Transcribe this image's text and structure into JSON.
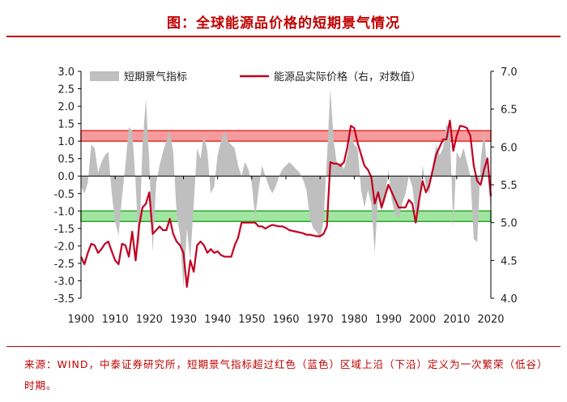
{
  "header": {
    "title": "图：全球能源品价格的短期景气情况"
  },
  "footer": {
    "source": "来源：WIND，中泰证券研究所，短期景气指标超过红色（蓝色）区域上沿（下沿）定义为一次繁荣（低谷）时期。"
  },
  "chart_data": {
    "type": "area+line",
    "title": "图：全球能源品价格的短期景气情况",
    "xlabel": "",
    "ylabel": "",
    "y2label": "",
    "xlim": [
      1900,
      2020
    ],
    "ylim": [
      -3.5,
      3.0
    ],
    "y2lim": [
      4.0,
      7.0
    ],
    "x_ticks": [
      1900,
      1910,
      1920,
      1930,
      1940,
      1950,
      1960,
      1970,
      1980,
      1990,
      2000,
      2010,
      2020
    ],
    "y_ticks": [
      3.0,
      2.5,
      2.0,
      1.5,
      1.0,
      0.5,
      0.0,
      -0.5,
      -1.0,
      -1.5,
      -2.0,
      -2.5,
      -3.0,
      -3.5
    ],
    "y2_ticks": [
      7.0,
      6.5,
      6.0,
      5.5,
      5.0,
      4.5,
      4.0
    ],
    "y_tick_labels": [
      "3.0",
      "2.5",
      "2.0",
      "1.5",
      "1.0",
      "0.5",
      "0.0",
      "-0.5",
      "-1.0",
      "-1.5",
      "-2.0",
      "-2.5",
      "-3.0",
      "-3.5"
    ],
    "y2_tick_labels": [
      "7.0",
      "6.5",
      "6.0",
      "5.5",
      "5.0",
      "4.5",
      "4.0"
    ],
    "legend_position": "top",
    "bands": [
      {
        "name": "boom",
        "y_range": [
          1.0,
          1.3
        ],
        "fill": "#f48a8a",
        "stroke": "#e03030"
      },
      {
        "name": "trough",
        "y_range": [
          -1.3,
          -1.0
        ],
        "fill": "#8fe08f",
        "stroke": "#2ea52e"
      }
    ],
    "series": [
      {
        "name": "短期景气指标",
        "type": "area",
        "axis": "left",
        "color": "#bfbfbf",
        "x": [
          1900,
          1901,
          1902,
          1903,
          1904,
          1905,
          1906,
          1907,
          1908,
          1909,
          1910,
          1911,
          1912,
          1913,
          1914,
          1915,
          1916,
          1917,
          1918,
          1919,
          1920,
          1921,
          1922,
          1923,
          1924,
          1925,
          1926,
          1927,
          1928,
          1929,
          1930,
          1931,
          1932,
          1933,
          1934,
          1935,
          1936,
          1937,
          1938,
          1939,
          1940,
          1941,
          1942,
          1943,
          1944,
          1945,
          1946,
          1947,
          1948,
          1949,
          1950,
          1951,
          1952,
          1953,
          1954,
          1955,
          1956,
          1957,
          1958,
          1959,
          1960,
          1961,
          1962,
          1963,
          1964,
          1965,
          1966,
          1967,
          1968,
          1969,
          1970,
          1971,
          1972,
          1973,
          1974,
          1975,
          1976,
          1977,
          1978,
          1979,
          1980,
          1981,
          1982,
          1983,
          1984,
          1985,
          1986,
          1987,
          1988,
          1989,
          1990,
          1991,
          1992,
          1993,
          1994,
          1995,
          1996,
          1997,
          1998,
          1999,
          2000,
          2001,
          2002,
          2003,
          2004,
          2005,
          2006,
          2007,
          2008,
          2009,
          2010,
          2011,
          2012,
          2013,
          2014,
          2015,
          2016,
          2017,
          2018,
          2019,
          2020
        ],
        "values": [
          -0.3,
          -0.5,
          -0.2,
          0.9,
          0.8,
          0.1,
          0.4,
          0.6,
          0.7,
          -0.5,
          -1.3,
          -1.7,
          -0.6,
          0.3,
          1.4,
          1.3,
          -0.2,
          -2.2,
          0.9,
          2.2,
          0.4,
          -2.2,
          -0.2,
          0.3,
          0.7,
          1.0,
          1.3,
          0.7,
          -1.1,
          -1.7,
          -3.2,
          -1.5,
          -2.4,
          -0.8,
          0.8,
          0.5,
          1.2,
          0.7,
          -0.5,
          -0.3,
          0.6,
          1.0,
          1.3,
          1.0,
          0.9,
          0.8,
          0.3,
          0.0,
          0.4,
          0.2,
          -0.2,
          -1.2,
          -0.4,
          0.3,
          0.0,
          -0.3,
          -0.5,
          -0.3,
          0.0,
          0.2,
          0.3,
          0.4,
          0.3,
          0.2,
          0.1,
          -0.1,
          -0.4,
          -1.2,
          -1.5,
          -1.6,
          -1.8,
          -1.3,
          0.5,
          2.5,
          1.0,
          0.3,
          0.4,
          0.2,
          0.6,
          1.2,
          0.9,
          0.8,
          -0.4,
          -0.9,
          -0.4,
          -0.8,
          -2.2,
          -0.6,
          -1.0,
          -0.7,
          0.2,
          -0.7,
          -1.1,
          -1.2,
          -0.8,
          -0.5,
          0.0,
          -0.3,
          -1.1,
          -1.0,
          0.3,
          -0.3,
          -0.5,
          0.3,
          0.9,
          0.6,
          0.8,
          1.5,
          1.3,
          -1.5,
          0.7,
          0.5,
          0.8,
          0.4,
          0.0,
          -1.8,
          -1.9,
          0.4,
          1.3,
          0.1,
          -1.0
        ]
      },
      {
        "name": "能源品实际价格（右，对数值）",
        "type": "line",
        "axis": "right",
        "color": "#c00020",
        "x": [
          1900,
          1901,
          1902,
          1903,
          1904,
          1905,
          1906,
          1907,
          1908,
          1909,
          1910,
          1911,
          1912,
          1913,
          1914,
          1915,
          1916,
          1917,
          1918,
          1919,
          1920,
          1921,
          1922,
          1923,
          1924,
          1925,
          1926,
          1927,
          1928,
          1929,
          1930,
          1931,
          1932,
          1933,
          1934,
          1935,
          1936,
          1937,
          1938,
          1939,
          1940,
          1941,
          1942,
          1943,
          1944,
          1945,
          1946,
          1947,
          1948,
          1949,
          1950,
          1951,
          1952,
          1953,
          1954,
          1955,
          1956,
          1957,
          1958,
          1959,
          1960,
          1961,
          1962,
          1963,
          1964,
          1965,
          1966,
          1967,
          1968,
          1969,
          1970,
          1971,
          1972,
          1973,
          1974,
          1975,
          1976,
          1977,
          1978,
          1979,
          1980,
          1981,
          1982,
          1983,
          1984,
          1985,
          1986,
          1987,
          1988,
          1989,
          1990,
          1991,
          1992,
          1993,
          1994,
          1995,
          1996,
          1997,
          1998,
          1999,
          2000,
          2001,
          2002,
          2003,
          2004,
          2005,
          2006,
          2007,
          2008,
          2009,
          2010,
          2011,
          2012,
          2013,
          2014,
          2015,
          2016,
          2017,
          2018,
          2019,
          2020
        ],
        "values": [
          4.55,
          4.45,
          4.6,
          4.72,
          4.7,
          4.6,
          4.65,
          4.72,
          4.75,
          4.62,
          4.5,
          4.45,
          4.72,
          4.7,
          4.55,
          4.88,
          4.5,
          4.95,
          5.2,
          5.25,
          5.4,
          4.85,
          4.9,
          4.95,
          4.9,
          4.9,
          5.05,
          4.85,
          4.75,
          4.7,
          4.6,
          4.15,
          4.5,
          4.35,
          4.7,
          4.75,
          4.7,
          4.6,
          4.65,
          4.6,
          4.62,
          4.57,
          4.55,
          4.55,
          4.55,
          4.7,
          4.8,
          5.0,
          5.0,
          5.0,
          5.0,
          5.0,
          4.95,
          4.95,
          4.92,
          4.95,
          4.97,
          4.96,
          4.95,
          4.95,
          4.93,
          4.9,
          4.89,
          4.88,
          4.87,
          4.86,
          4.84,
          4.84,
          4.83,
          4.82,
          4.82,
          4.85,
          4.95,
          5.8,
          5.78,
          5.78,
          5.75,
          5.8,
          6.0,
          6.28,
          6.25,
          6.05,
          5.9,
          5.75,
          5.7,
          5.6,
          5.25,
          5.4,
          5.2,
          5.35,
          5.5,
          5.4,
          5.3,
          5.2,
          5.2,
          5.2,
          5.3,
          5.25,
          5.0,
          5.3,
          5.55,
          5.4,
          5.5,
          5.7,
          5.9,
          6.0,
          6.1,
          6.1,
          6.35,
          5.95,
          6.15,
          6.28,
          6.27,
          6.25,
          6.15,
          5.75,
          5.55,
          5.5,
          5.7,
          5.85,
          5.35
        ]
      }
    ]
  }
}
